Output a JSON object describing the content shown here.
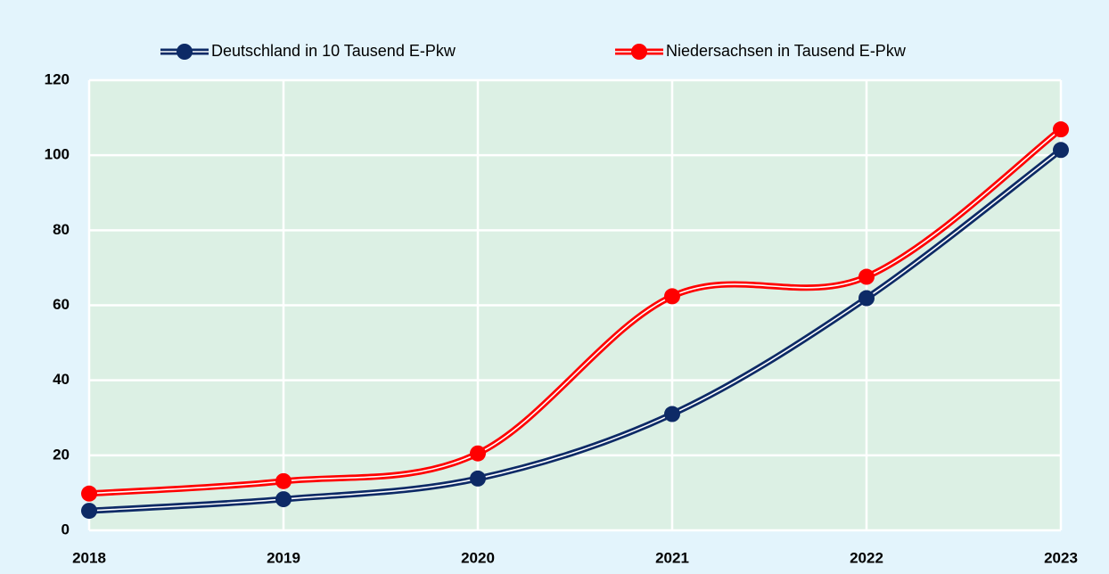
{
  "chart_data": {
    "type": "line",
    "categories": [
      "2018",
      "2019",
      "2020",
      "2021",
      "2022",
      "2023"
    ],
    "series": [
      {
        "name": "Deutschland in 10 Tausend E-Pkw",
        "color": "#0d2a66",
        "values": [
          5.2,
          8.3,
          13.8,
          31,
          61.9,
          101.4
        ]
      },
      {
        "name": "Niedersachsen in Tausend E-Pkw",
        "color": "#ff0000",
        "values": [
          9.8,
          13.1,
          20.5,
          62.4,
          67.6,
          106.9
        ]
      }
    ],
    "ylim": [
      0,
      120
    ],
    "yticks": [
      0,
      20,
      40,
      60,
      80,
      100,
      120
    ],
    "grid": true,
    "smooth": true
  }
}
